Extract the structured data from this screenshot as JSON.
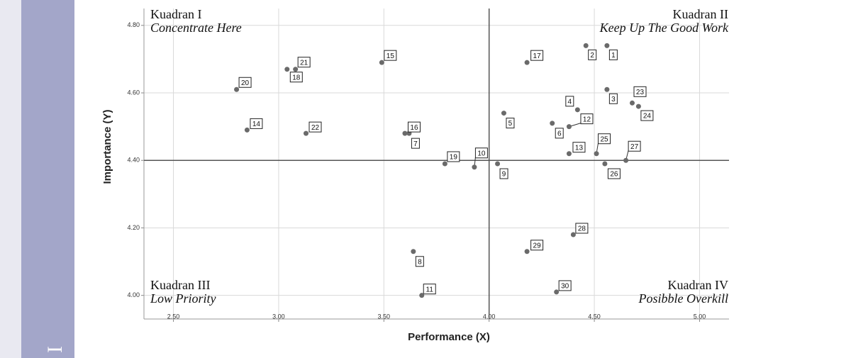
{
  "margin_text": "I",
  "chart_data": {
    "type": "scatter",
    "x_label": "Performance (X)",
    "y_label": "Importance (Y)",
    "xlim": [
      2.36,
      5.14
    ],
    "ylim": [
      3.93,
      4.85
    ],
    "xticks": [
      {
        "value": 2.5,
        "label": "2.50"
      },
      {
        "value": 3,
        "label": "3.00"
      },
      {
        "value": 3.5,
        "label": "3.50"
      },
      {
        "value": 4,
        "label": "4.00"
      },
      {
        "value": 4.5,
        "label": "4.50"
      },
      {
        "value": 5,
        "label": "5.00"
      }
    ],
    "yticks": [
      {
        "value": 4,
        "label": "4.00"
      },
      {
        "value": 4.2,
        "label": "4.20"
      },
      {
        "value": 4.4,
        "label": "4.40"
      },
      {
        "value": 4.6,
        "label": "4.60"
      },
      {
        "value": 4.8,
        "label": "4.80"
      }
    ],
    "grid": true,
    "color": "#6a6a6a",
    "x_reference": 4,
    "y_reference": 4.4,
    "quadrants": [
      {
        "name": "Kuadran I",
        "subtitle": "Concentrate Here"
      },
      {
        "name": "Kuadran II",
        "subtitle": "Keep Up The Good Work"
      },
      {
        "name": "Kuadran III",
        "subtitle": "Low Priority"
      },
      {
        "name": "Kuadran IV",
        "subtitle": "Posibble Overkill"
      }
    ],
    "labels": [
      "1",
      "2",
      "3",
      "4",
      "5",
      "6",
      "7",
      "8",
      "9",
      "10",
      "11",
      "12",
      "13",
      "14",
      "15",
      "16",
      "17",
      "18",
      "19",
      "20",
      "21",
      "22",
      "23",
      "24",
      "25",
      "26",
      "27",
      "28",
      "29",
      "30"
    ],
    "x": [
      4.56,
      4.46,
      4.56,
      4.42,
      4.07,
      4.3,
      3.62,
      3.64,
      4.04,
      3.93,
      3.68,
      4.38,
      4.38,
      2.85,
      3.49,
      3.6,
      4.18,
      3.04,
      3.79,
      2.8,
      3.08,
      3.13,
      4.68,
      4.71,
      4.51,
      4.55,
      4.65,
      4.4,
      4.18,
      4.32
    ],
    "y": [
      4.74,
      4.74,
      4.61,
      4.55,
      4.54,
      4.51,
      4.48,
      4.13,
      4.39,
      4.38,
      4.0,
      4.5,
      4.42,
      4.49,
      4.69,
      4.48,
      4.69,
      4.67,
      4.39,
      4.61,
      4.67,
      4.48,
      4.57,
      4.56,
      4.42,
      4.39,
      4.4,
      4.18,
      4.13,
      4.01
    ]
  }
}
